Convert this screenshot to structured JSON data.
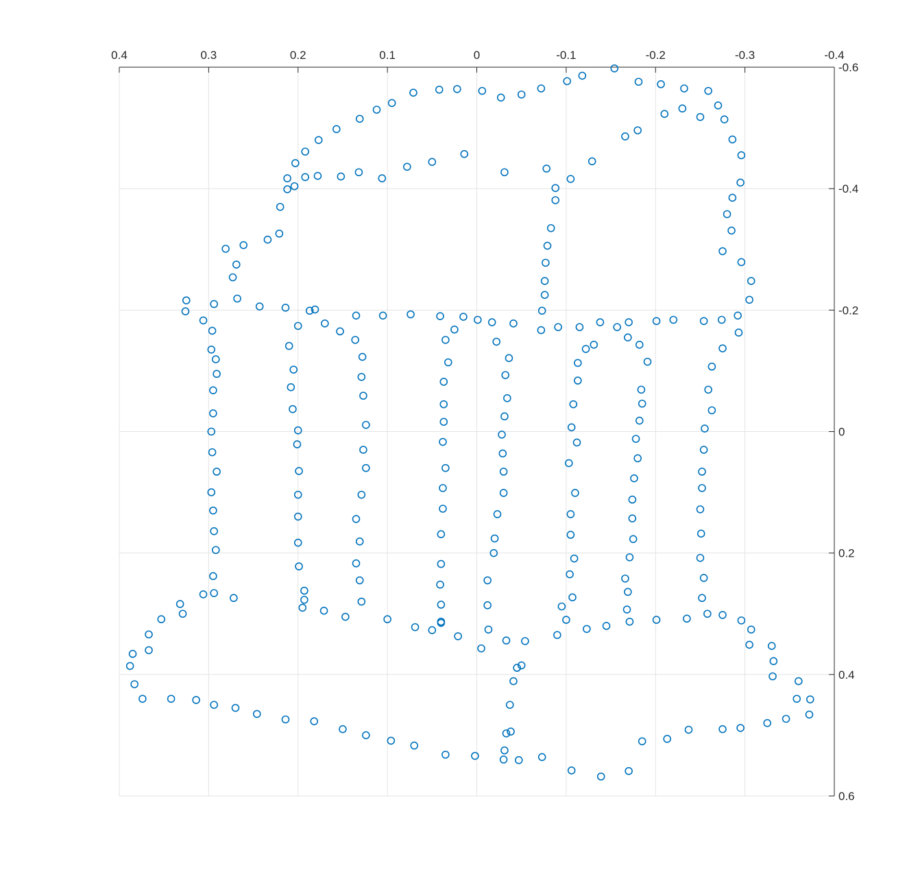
{
  "chart_data": {
    "type": "scatter",
    "title": "",
    "xlabel": "",
    "ylabel": "",
    "xlim": [
      0.4,
      -0.4
    ],
    "ylim": [
      -0.6,
      0.6
    ],
    "x_direction": "reversed",
    "y_direction": "reversed",
    "x_axis_location": "top",
    "y_axis_location": "right",
    "grid": true,
    "box": false,
    "marker": "circle-open",
    "color": "#0072BD",
    "x_ticks": [
      0.4,
      0.3,
      0.2,
      0.1,
      0,
      -0.1,
      -0.2,
      -0.3,
      -0.4
    ],
    "x_tick_labels": [
      "0.4",
      "0.3",
      "0.2",
      "0.1",
      "0",
      "-0.1",
      "-0.2",
      "-0.3",
      "-0.4"
    ],
    "y_ticks": [
      -0.6,
      -0.4,
      -0.2,
      0,
      0.2,
      0.4,
      0.6
    ],
    "y_tick_labels": [
      "-0.6",
      "-0.4",
      "-0.2",
      "0",
      "0.2",
      "0.4",
      "0.6"
    ],
    "series": [
      {
        "points": [
          [
            -0.154,
            -0.598
          ],
          [
            -0.118,
            -0.586
          ],
          [
            -0.101,
            -0.577
          ],
          [
            -0.072,
            -0.565
          ],
          [
            -0.05,
            -0.555
          ],
          [
            -0.027,
            -0.55
          ],
          [
            -0.006,
            -0.561
          ],
          [
            0.022,
            -0.564
          ],
          [
            0.042,
            -0.563
          ],
          [
            0.071,
            -0.558
          ],
          [
            0.095,
            -0.541
          ],
          [
            0.112,
            -0.53
          ],
          [
            0.131,
            -0.515
          ],
          [
            0.157,
            -0.498
          ],
          [
            0.177,
            -0.48
          ],
          [
            0.192,
            -0.461
          ],
          [
            0.203,
            -0.442
          ],
          [
            0.212,
            -0.417
          ],
          [
            0.212,
            -0.399
          ],
          [
            0.22,
            -0.37
          ],
          [
            0.221,
            -0.326
          ],
          [
            0.234,
            -0.316
          ],
          [
            0.261,
            -0.307
          ],
          [
            0.281,
            -0.301
          ],
          [
            0.269,
            -0.275
          ],
          [
            0.273,
            -0.254
          ],
          [
            0.268,
            -0.219
          ],
          [
            0.325,
            -0.216
          ],
          [
            0.326,
            -0.198
          ],
          [
            0.294,
            -0.21
          ],
          [
            0.243,
            -0.206
          ],
          [
            0.214,
            -0.204
          ],
          [
            0.181,
            -0.201
          ],
          [
            0.306,
            -0.183
          ],
          [
            0.296,
            -0.166
          ],
          [
            0.297,
            -0.135
          ],
          [
            0.292,
            -0.119
          ],
          [
            0.291,
            -0.095
          ],
          [
            0.295,
            -0.068
          ],
          [
            0.295,
            -0.03
          ],
          [
            0.297,
            0.0
          ],
          [
            0.296,
            0.034
          ],
          [
            0.291,
            0.066
          ],
          [
            0.297,
            0.1
          ],
          [
            0.295,
            0.13
          ],
          [
            0.294,
            0.164
          ],
          [
            0.292,
            0.195
          ],
          [
            0.295,
            0.238
          ],
          [
            0.294,
            0.266
          ],
          [
            0.306,
            0.268
          ],
          [
            0.272,
            0.274
          ],
          [
            0.332,
            0.284
          ],
          [
            0.329,
            0.3
          ],
          [
            0.353,
            0.309
          ],
          [
            0.367,
            0.334
          ],
          [
            0.367,
            0.36
          ],
          [
            0.385,
            0.366
          ],
          [
            0.388,
            0.386
          ],
          [
            0.383,
            0.416
          ],
          [
            0.374,
            0.44
          ],
          [
            0.342,
            0.44
          ],
          [
            0.314,
            0.442
          ],
          [
            0.294,
            0.45
          ],
          [
            0.27,
            0.455
          ],
          [
            0.246,
            0.465
          ],
          [
            0.214,
            0.474
          ],
          [
            0.182,
            0.477
          ],
          [
            0.15,
            0.49
          ],
          [
            0.124,
            0.5
          ],
          [
            0.096,
            0.509
          ],
          [
            0.07,
            0.517
          ],
          [
            0.035,
            0.532
          ],
          [
            0.002,
            0.534
          ],
          [
            -0.03,
            0.54
          ],
          [
            -0.047,
            0.541
          ],
          [
            -0.073,
            0.536
          ],
          [
            -0.106,
            0.558
          ],
          [
            -0.139,
            0.568
          ],
          [
            -0.17,
            0.559
          ],
          [
            -0.185,
            0.51
          ],
          [
            -0.213,
            0.506
          ],
          [
            -0.237,
            0.491
          ],
          [
            -0.275,
            0.49
          ],
          [
            -0.295,
            0.488
          ],
          [
            -0.325,
            0.48
          ],
          [
            -0.346,
            0.473
          ],
          [
            -0.372,
            0.466
          ],
          [
            -0.358,
            0.44
          ],
          [
            -0.373,
            0.441
          ],
          [
            -0.36,
            0.411
          ],
          [
            -0.331,
            0.403
          ],
          [
            -0.332,
            0.378
          ],
          [
            -0.33,
            0.353
          ],
          [
            -0.305,
            0.351
          ],
          [
            -0.307,
            0.326
          ],
          [
            -0.296,
            0.311
          ],
          [
            -0.275,
            0.302
          ],
          [
            -0.258,
            0.3
          ],
          [
            -0.235,
            0.308
          ],
          [
            -0.201,
            0.31
          ],
          [
            -0.171,
            0.313
          ],
          [
            -0.168,
            0.293
          ],
          [
            -0.145,
            0.32
          ],
          [
            -0.123,
            0.325
          ],
          [
            -0.1,
            0.31
          ],
          [
            -0.095,
            0.288
          ],
          [
            -0.09,
            0.335
          ],
          [
            -0.054,
            0.345
          ],
          [
            -0.033,
            0.344
          ],
          [
            -0.005,
            0.357
          ],
          [
            0.021,
            0.337
          ],
          [
            0.05,
            0.327
          ],
          [
            -0.013,
            0.326
          ],
          [
            0.04,
            0.315
          ],
          [
            0.069,
            0.322
          ],
          [
            0.1,
            0.309
          ],
          [
            0.147,
            0.305
          ],
          [
            0.171,
            0.295
          ],
          [
            0.195,
            0.29
          ],
          [
            0.193,
            0.277
          ],
          [
            0.193,
            0.262
          ],
          [
            -0.05,
            0.385
          ],
          [
            -0.045,
            0.389
          ],
          [
            -0.041,
            0.411
          ],
          [
            -0.037,
            0.45
          ],
          [
            -0.038,
            0.494
          ],
          [
            -0.033,
            0.497
          ],
          [
            -0.031,
            0.525
          ],
          [
            0.199,
            0.222
          ],
          [
            0.2,
            0.183
          ],
          [
            0.2,
            0.14
          ],
          [
            0.2,
            0.104
          ],
          [
            0.199,
            0.065
          ],
          [
            0.201,
            0.021
          ],
          [
            0.2,
            -0.002
          ],
          [
            0.206,
            -0.037
          ],
          [
            0.208,
            -0.073
          ],
          [
            0.205,
            -0.102
          ],
          [
            0.21,
            -0.141
          ],
          [
            0.2,
            -0.174
          ],
          [
            0.187,
            -0.199
          ],
          [
            0.17,
            -0.178
          ],
          [
            0.153,
            -0.165
          ],
          [
            0.136,
            -0.151
          ],
          [
            0.128,
            -0.123
          ],
          [
            0.129,
            -0.09
          ],
          [
            0.127,
            -0.059
          ],
          [
            0.124,
            -0.011
          ],
          [
            0.127,
            0.03
          ],
          [
            0.124,
            0.06
          ],
          [
            0.129,
            0.104
          ],
          [
            0.135,
            0.144
          ],
          [
            0.131,
            0.181
          ],
          [
            0.135,
            0.217
          ],
          [
            0.131,
            0.245
          ],
          [
            0.129,
            0.28
          ],
          [
            0.135,
            -0.191
          ],
          [
            0.105,
            -0.191
          ],
          [
            0.074,
            -0.193
          ],
          [
            0.041,
            -0.19
          ],
          [
            0.015,
            -0.189
          ],
          [
            -0.001,
            -0.184
          ],
          [
            -0.017,
            -0.18
          ],
          [
            -0.041,
            -0.178
          ],
          [
            0.035,
            -0.151
          ],
          [
            0.032,
            -0.114
          ],
          [
            0.037,
            -0.082
          ],
          [
            0.037,
            -0.045
          ],
          [
            0.037,
            -0.016
          ],
          [
            0.038,
            0.017
          ],
          [
            0.035,
            0.06
          ],
          [
            0.038,
            0.093
          ],
          [
            0.038,
            0.127
          ],
          [
            0.04,
            0.169
          ],
          [
            0.04,
            0.218
          ],
          [
            0.041,
            0.252
          ],
          [
            0.04,
            0.285
          ],
          [
            0.04,
            0.313
          ],
          [
            0.025,
            -0.168
          ],
          [
            -0.022,
            -0.148
          ],
          [
            -0.036,
            -0.121
          ],
          [
            -0.032,
            -0.093
          ],
          [
            -0.034,
            -0.055
          ],
          [
            -0.031,
            -0.025
          ],
          [
            -0.028,
            0.005
          ],
          [
            -0.029,
            0.036
          ],
          [
            -0.03,
            0.066
          ],
          [
            -0.03,
            0.101
          ],
          [
            -0.023,
            0.136
          ],
          [
            -0.02,
            0.176
          ],
          [
            -0.019,
            0.2
          ],
          [
            -0.012,
            0.245
          ],
          [
            -0.012,
            0.286
          ],
          [
            -0.073,
            -0.199
          ],
          [
            -0.076,
            -0.225
          ],
          [
            -0.076,
            -0.248
          ],
          [
            -0.077,
            -0.278
          ],
          [
            -0.079,
            -0.306
          ],
          [
            -0.083,
            -0.335
          ],
          [
            -0.088,
            -0.381
          ],
          [
            -0.088,
            -0.401
          ],
          [
            -0.105,
            -0.416
          ],
          [
            -0.078,
            -0.433
          ],
          [
            -0.031,
            -0.427
          ],
          [
            0.014,
            -0.457
          ],
          [
            0.05,
            -0.444
          ],
          [
            0.078,
            -0.436
          ],
          [
            0.106,
            -0.417
          ],
          [
            0.132,
            -0.427
          ],
          [
            0.152,
            -0.42
          ],
          [
            0.178,
            -0.421
          ],
          [
            0.192,
            -0.419
          ],
          [
            0.204,
            -0.404
          ],
          [
            -0.129,
            -0.445
          ],
          [
            -0.166,
            -0.486
          ],
          [
            -0.18,
            -0.496
          ],
          [
            -0.21,
            -0.523
          ],
          [
            -0.23,
            -0.532
          ],
          [
            -0.25,
            -0.518
          ],
          [
            -0.181,
            -0.576
          ],
          [
            -0.206,
            -0.572
          ],
          [
            -0.232,
            -0.565
          ],
          [
            -0.259,
            -0.561
          ],
          [
            -0.27,
            -0.537
          ],
          [
            -0.277,
            -0.514
          ],
          [
            -0.286,
            -0.481
          ],
          [
            -0.296,
            -0.455
          ],
          [
            -0.295,
            -0.41
          ],
          [
            -0.286,
            -0.385
          ],
          [
            -0.28,
            -0.358
          ],
          [
            -0.285,
            -0.331
          ],
          [
            -0.275,
            -0.297
          ],
          [
            -0.296,
            -0.279
          ],
          [
            -0.307,
            -0.248
          ],
          [
            -0.305,
            -0.217
          ],
          [
            -0.292,
            -0.191
          ],
          [
            -0.293,
            -0.163
          ],
          [
            -0.275,
            -0.137
          ],
          [
            -0.263,
            -0.107
          ],
          [
            -0.259,
            -0.069
          ],
          [
            -0.263,
            -0.035
          ],
          [
            -0.255,
            -0.005
          ],
          [
            -0.254,
            0.03
          ],
          [
            -0.252,
            0.066
          ],
          [
            -0.252,
            0.093
          ],
          [
            -0.25,
            0.128
          ],
          [
            -0.251,
            0.168
          ],
          [
            -0.25,
            0.208
          ],
          [
            -0.254,
            0.241
          ],
          [
            -0.252,
            0.274
          ],
          [
            -0.072,
            -0.167
          ],
          [
            -0.091,
            -0.172
          ],
          [
            -0.115,
            -0.172
          ],
          [
            -0.138,
            -0.18
          ],
          [
            -0.157,
            -0.172
          ],
          [
            -0.17,
            -0.18
          ],
          [
            -0.169,
            -0.155
          ],
          [
            -0.182,
            -0.143
          ],
          [
            -0.191,
            -0.115
          ],
          [
            -0.184,
            -0.069
          ],
          [
            -0.185,
            -0.046
          ],
          [
            -0.182,
            -0.018
          ],
          [
            -0.178,
            0.012
          ],
          [
            -0.18,
            0.044
          ],
          [
            -0.176,
            0.077
          ],
          [
            -0.174,
            0.112
          ],
          [
            -0.174,
            0.143
          ],
          [
            -0.175,
            0.177
          ],
          [
            -0.171,
            0.207
          ],
          [
            -0.166,
            0.242
          ],
          [
            -0.169,
            0.264
          ],
          [
            -0.131,
            -0.143
          ],
          [
            -0.122,
            -0.136
          ],
          [
            -0.113,
            -0.113
          ],
          [
            -0.113,
            -0.084
          ],
          [
            -0.108,
            -0.045
          ],
          [
            -0.106,
            -0.007
          ],
          [
            -0.112,
            0.018
          ],
          [
            -0.103,
            0.052
          ],
          [
            -0.11,
            0.101
          ],
          [
            -0.105,
            0.136
          ],
          [
            -0.105,
            0.17
          ],
          [
            -0.109,
            0.209
          ],
          [
            -0.104,
            0.235
          ],
          [
            -0.107,
            0.273
          ],
          [
            -0.201,
            -0.182
          ],
          [
            -0.22,
            -0.184
          ],
          [
            -0.254,
            -0.182
          ],
          [
            -0.274,
            -0.184
          ]
        ]
      }
    ]
  }
}
